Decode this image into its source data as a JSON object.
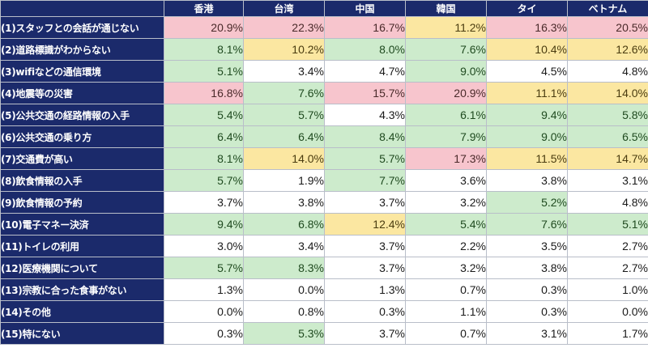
{
  "colors": {
    "header_bg": "#1b2a6b",
    "red": "#f7c5cd",
    "yellow": "#fbe7a1",
    "green": "#cdebcc",
    "none": "#ffffff"
  },
  "chart_data": {
    "type": "heatmap",
    "columns": [
      "香港",
      "台湾",
      "中国",
      "韓国",
      "タイ",
      "ベトナム"
    ],
    "rows": [
      {
        "label": "(1)スタッフとの会話が通じない",
        "values": [
          "20.9%",
          "22.3%",
          "16.7%",
          "11.2%",
          "16.3%",
          "20.5%"
        ],
        "highlight": [
          "red",
          "red",
          "red",
          "yellow",
          "red",
          "red"
        ]
      },
      {
        "label": "(2)道路標識がわからない",
        "values": [
          "8.1%",
          "10.2%",
          "8.0%",
          "7.6%",
          "10.4%",
          "12.6%"
        ],
        "highlight": [
          "green",
          "yellow",
          "green",
          "green",
          "yellow",
          "yellow"
        ]
      },
      {
        "label": "(3)wifiなどの通信環境",
        "values": [
          "5.1%",
          "3.4%",
          "4.7%",
          "9.0%",
          "4.5%",
          "4.8%"
        ],
        "highlight": [
          "green",
          "none",
          "none",
          "green",
          "none",
          "none"
        ]
      },
      {
        "label": "(4)地震等の災害",
        "values": [
          "16.8%",
          "7.6%",
          "15.7%",
          "20.9%",
          "11.1%",
          "14.0%"
        ],
        "highlight": [
          "red",
          "green",
          "red",
          "red",
          "yellow",
          "yellow"
        ]
      },
      {
        "label": "(5)公共交通の経路情報の入手",
        "values": [
          "5.4%",
          "5.7%",
          "4.3%",
          "6.1%",
          "9.4%",
          "5.8%"
        ],
        "highlight": [
          "green",
          "green",
          "none",
          "green",
          "green",
          "green"
        ]
      },
      {
        "label": "(6)公共交通の乗り方",
        "values": [
          "6.4%",
          "6.4%",
          "8.4%",
          "7.9%",
          "9.0%",
          "6.5%"
        ],
        "highlight": [
          "green",
          "green",
          "green",
          "green",
          "green",
          "green"
        ]
      },
      {
        "label": "(7)交通費が高い",
        "values": [
          "8.1%",
          "14.0%",
          "5.7%",
          "17.3%",
          "11.5%",
          "14.7%"
        ],
        "highlight": [
          "green",
          "yellow",
          "green",
          "red",
          "yellow",
          "yellow"
        ]
      },
      {
        "label": "(8)飲食情報の入手",
        "values": [
          "5.7%",
          "1.9%",
          "7.7%",
          "3.6%",
          "3.8%",
          "3.1%"
        ],
        "highlight": [
          "green",
          "none",
          "green",
          "none",
          "none",
          "none"
        ]
      },
      {
        "label": "(9)飲食情報の予約",
        "values": [
          "3.7%",
          "3.8%",
          "3.7%",
          "3.2%",
          "5.2%",
          "4.8%"
        ],
        "highlight": [
          "none",
          "none",
          "none",
          "none",
          "green",
          "none"
        ]
      },
      {
        "label": "(10)電子マネー決済",
        "values": [
          "9.4%",
          "6.8%",
          "12.4%",
          "5.4%",
          "7.6%",
          "5.1%"
        ],
        "highlight": [
          "green",
          "green",
          "yellow",
          "green",
          "green",
          "green"
        ]
      },
      {
        "label": "(11)トイレの利用",
        "values": [
          "3.0%",
          "3.4%",
          "3.7%",
          "2.2%",
          "3.5%",
          "2.7%"
        ],
        "highlight": [
          "none",
          "none",
          "none",
          "none",
          "none",
          "none"
        ]
      },
      {
        "label": "(12)医療機関について",
        "values": [
          "5.7%",
          "8.3%",
          "3.7%",
          "3.2%",
          "3.8%",
          "2.7%"
        ],
        "highlight": [
          "green",
          "green",
          "none",
          "none",
          "none",
          "none"
        ]
      },
      {
        "label": "(13)宗教に合った食事がない",
        "values": [
          "1.3%",
          "0.0%",
          "1.3%",
          "0.7%",
          "0.3%",
          "1.0%"
        ],
        "highlight": [
          "none",
          "none",
          "none",
          "none",
          "none",
          "none"
        ]
      },
      {
        "label": "(14)その他",
        "values": [
          "0.0%",
          "0.8%",
          "0.3%",
          "1.1%",
          "0.3%",
          "0.0%"
        ],
        "highlight": [
          "none",
          "none",
          "none",
          "none",
          "none",
          "none"
        ]
      },
      {
        "label": "(15)特にない",
        "values": [
          "0.3%",
          "5.3%",
          "3.7%",
          "0.7%",
          "3.1%",
          "1.7%"
        ],
        "highlight": [
          "none",
          "green",
          "none",
          "none",
          "none",
          "none"
        ]
      }
    ]
  }
}
